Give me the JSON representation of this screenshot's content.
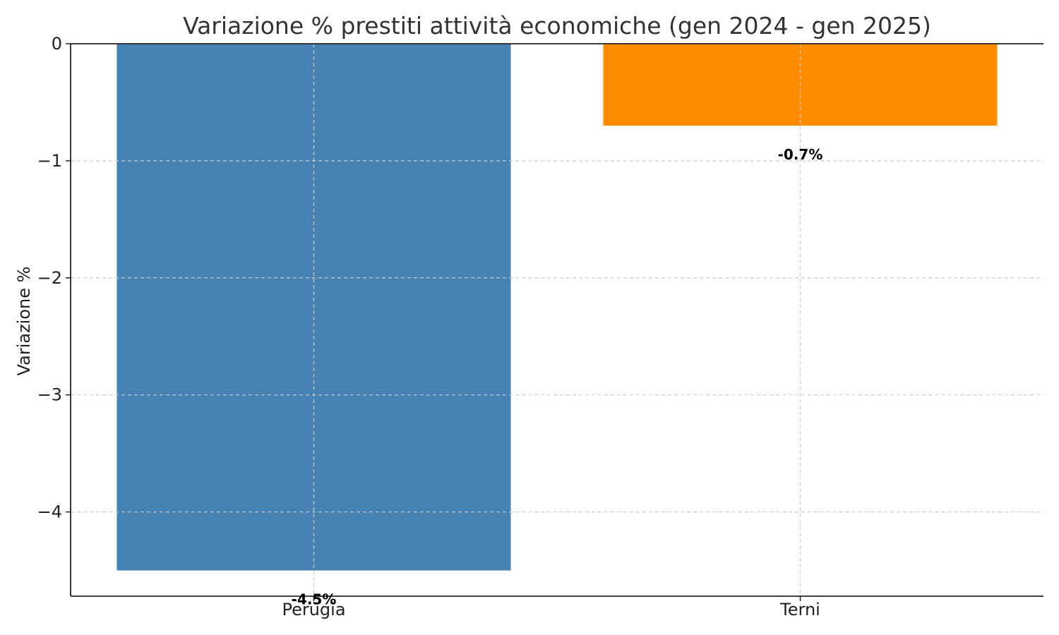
{
  "chart_data": {
    "type": "bar",
    "title": "Variazione % prestiti attività economiche (gen 2024 - gen 2025)",
    "xlabel": "",
    "ylabel": "Variazione %",
    "categories": [
      "Perugia",
      "Terni"
    ],
    "values": [
      -4.5,
      -0.7
    ],
    "data_labels": [
      "-4.5%",
      "-0.7%"
    ],
    "colors": [
      "#4682B4",
      "#FF8C00"
    ],
    "ylim": [
      -4.72,
      0
    ],
    "yticks": [
      0,
      -1,
      -2,
      -3,
      -4
    ],
    "ytick_labels": [
      "0",
      "−1",
      "−2",
      "−3",
      "−4"
    ],
    "grid": true,
    "legend": false
  }
}
